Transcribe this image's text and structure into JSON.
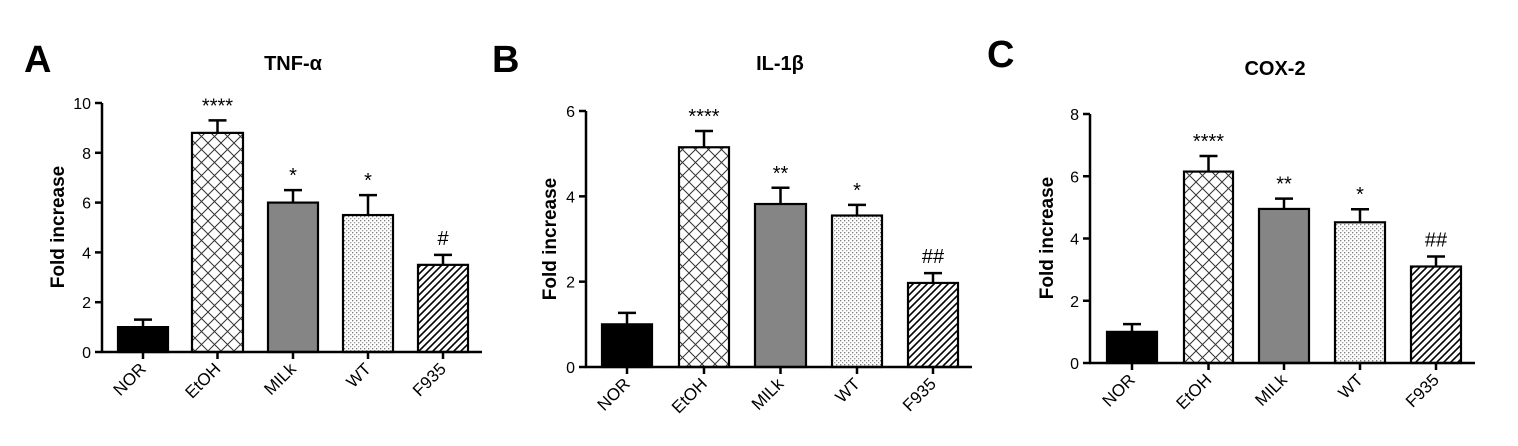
{
  "chart_data": [
    {
      "type": "bar",
      "panel": "A",
      "title": "TNF-α",
      "ylabel": "Fold increase",
      "xlabel": "",
      "ylim": [
        0,
        10
      ],
      "yticks": [
        "0",
        "2",
        "4",
        "6",
        "8",
        "10"
      ],
      "categories": [
        "NOR",
        "EtOH",
        "MILk",
        "WT",
        "F935"
      ],
      "values": [
        1.0,
        8.8,
        6.0,
        5.5,
        3.5
      ],
      "errors": [
        0.3,
        0.5,
        0.5,
        0.8,
        0.4
      ],
      "significance": [
        "",
        "****",
        "*",
        "*",
        "#"
      ]
    },
    {
      "type": "bar",
      "panel": "B",
      "title": "IL-1β",
      "ylabel": "Fold increase",
      "xlabel": "",
      "ylim": [
        0,
        6
      ],
      "yticks": [
        "0",
        "2",
        "4",
        "6"
      ],
      "categories": [
        "NOR",
        "EtOH",
        "MILk",
        "WT",
        "F935"
      ],
      "values": [
        1.0,
        5.15,
        3.82,
        3.55,
        1.97
      ],
      "errors": [
        0.27,
        0.38,
        0.38,
        0.25,
        0.23
      ],
      "significance": [
        "",
        "****",
        "**",
        "*",
        "##"
      ]
    },
    {
      "type": "bar",
      "panel": "C",
      "title": "COX-2",
      "ylabel": "Fold increase",
      "xlabel": "",
      "ylim": [
        0,
        8
      ],
      "yticks": [
        "0",
        "2",
        "4",
        "6",
        "8"
      ],
      "categories": [
        "NOR",
        "EtOH",
        "MILk",
        "WT",
        "F935"
      ],
      "values": [
        1.0,
        6.15,
        4.95,
        4.52,
        3.1
      ],
      "errors": [
        0.25,
        0.5,
        0.33,
        0.42,
        0.32
      ],
      "significance": [
        "",
        "****",
        "**",
        "*",
        "##"
      ]
    }
  ],
  "bar_styles": [
    "solid-black",
    "crosshatch",
    "solid-gray",
    "dotted-grid",
    "diagonal-hatch"
  ],
  "colors": {
    "axis": "#000000",
    "solid_fill": "#000000",
    "gray_fill": "#858585",
    "pattern_bg": "#ffffff"
  }
}
